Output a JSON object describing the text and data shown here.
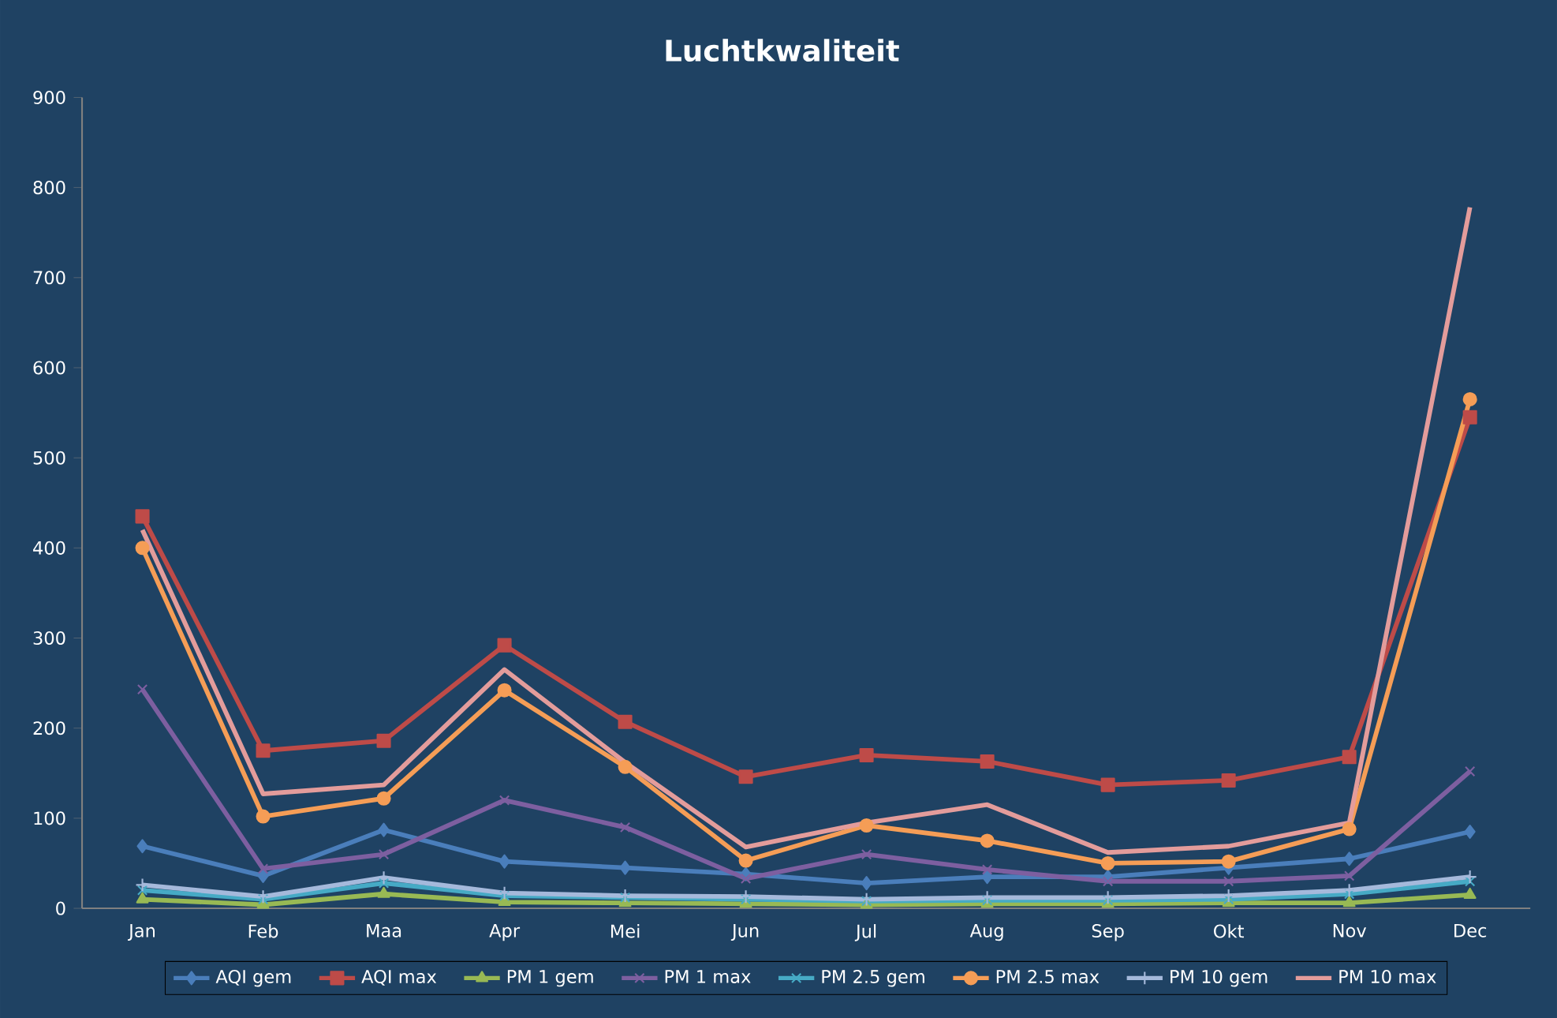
{
  "chart_data": {
    "type": "line",
    "title": "Luchtkwaliteit",
    "categories": [
      "Jan",
      "Feb",
      "Maa",
      "Apr",
      "Mei",
      "Jun",
      "Jul",
      "Aug",
      "Sep",
      "Okt",
      "Nov",
      "Dec"
    ],
    "ylim": [
      0,
      900
    ],
    "yticks": [
      0,
      100,
      200,
      300,
      400,
      500,
      600,
      700,
      800,
      900
    ],
    "legend": "bottom",
    "grid": false,
    "series": [
      {
        "name": "AQI gem",
        "color": "#4a7ebb",
        "marker": "diamond",
        "values": [
          69,
          36,
          87,
          52,
          45,
          38,
          28,
          35,
          35,
          45,
          55,
          85
        ]
      },
      {
        "name": "AQI max",
        "color": "#be4b48",
        "marker": "square",
        "values": [
          435,
          175,
          186,
          292,
          207,
          146,
          170,
          163,
          137,
          142,
          168,
          545
        ]
      },
      {
        "name": "PM 1 gem",
        "color": "#98b954",
        "marker": "triangle",
        "values": [
          10,
          4,
          16,
          7,
          6,
          5,
          4,
          5,
          5,
          6,
          6,
          15
        ]
      },
      {
        "name": "PM 1 max",
        "color": "#7d5fa0",
        "marker": "cross",
        "values": [
          243,
          44,
          60,
          120,
          90,
          33,
          60,
          43,
          30,
          30,
          36,
          152
        ]
      },
      {
        "name": "PM 2.5 gem",
        "color": "#46aac5",
        "marker": "cross",
        "values": [
          20,
          10,
          28,
          14,
          12,
          10,
          8,
          9,
          9,
          10,
          16,
          30
        ]
      },
      {
        "name": "PM 2.5 max",
        "color": "#f59d56",
        "marker": "circle",
        "values": [
          400,
          102,
          122,
          242,
          157,
          53,
          92,
          75,
          50,
          52,
          88,
          565
        ]
      },
      {
        "name": "PM 10 gem",
        "color": "#a5b9db",
        "marker": "plus",
        "values": [
          26,
          13,
          34,
          17,
          14,
          13,
          10,
          12,
          12,
          14,
          20,
          35
        ]
      },
      {
        "name": "PM 10 max",
        "color": "#e39c9b",
        "marker": "none",
        "values": [
          420,
          127,
          137,
          265,
          162,
          68,
          95,
          115,
          62,
          69,
          95,
          778
        ]
      }
    ]
  }
}
